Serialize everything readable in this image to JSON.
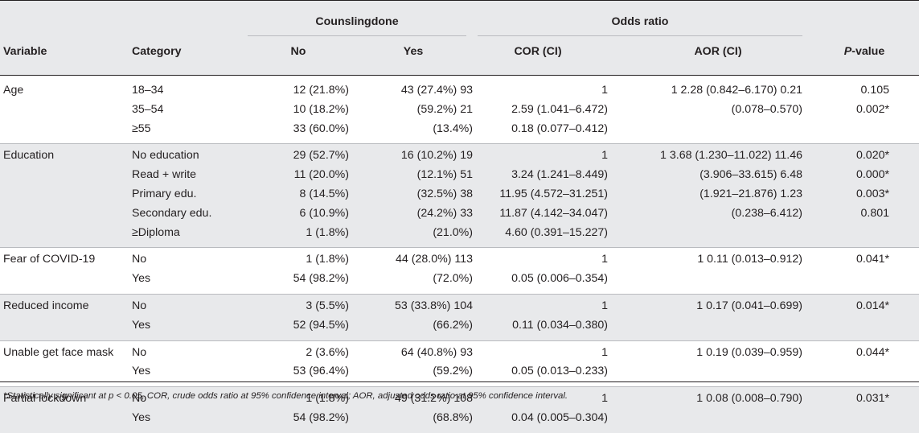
{
  "header": {
    "group_counsling": "Counslingdone",
    "group_odds": "Odds ratio",
    "col_variable": "Variable",
    "col_category": "Category",
    "col_no": "No",
    "col_yes": "Yes",
    "col_cor": "COR (CI)",
    "col_aor": "AOR (CI)",
    "col_p_italic": "P",
    "col_p_rest": "-value"
  },
  "groups": [
    {
      "variable": "Age",
      "rows": [
        {
          "category": "18–34",
          "no": "12 (21.8%)",
          "yes": "43 (27.4%) 93",
          "cor": "1",
          "aor": "1 2.28 (0.842–6.170) 0.21",
          "p": "0.105"
        },
        {
          "category": "35–54",
          "no": "10 (18.2%)",
          "yes": "(59.2%) 21",
          "cor": "2.59 (1.041–6.472)",
          "aor": "(0.078–0.570)",
          "p": "0.002*"
        },
        {
          "category": "≥55",
          "no": "33 (60.0%)",
          "yes": "(13.4%)",
          "cor": "0.18 (0.077–0.412)",
          "aor": "",
          "p": ""
        }
      ]
    },
    {
      "variable": "Education",
      "rows": [
        {
          "category": "No education",
          "no": "29 (52.7%)",
          "yes": "16 (10.2%) 19",
          "cor": "1",
          "aor": "1 3.68 (1.230–11.022) 11.46",
          "p": "0.020*"
        },
        {
          "category": "Read + write",
          "no": "11 (20.0%)",
          "yes": "(12.1%) 51",
          "cor": "3.24 (1.241–8.449)",
          "aor": "(3.906–33.615) 6.48",
          "p": "0.000*"
        },
        {
          "category": "Primary edu.",
          "no": "8 (14.5%)",
          "yes": "(32.5%) 38",
          "cor": "11.95 (4.572–31.251)",
          "aor": "(1.921–21.876) 1.23",
          "p": "0.003*"
        },
        {
          "category": "Secondary edu.",
          "no": "6 (10.9%)",
          "yes": "(24.2%) 33",
          "cor": "11.87 (4.142–34.047)",
          "aor": "(0.238–6.412)",
          "p": "0.801"
        },
        {
          "category": "≥Diploma",
          "no": "1 (1.8%)",
          "yes": "(21.0%)",
          "cor": "4.60 (0.391–15.227)",
          "aor": "",
          "p": ""
        }
      ]
    },
    {
      "variable": "Fear of COVID-19",
      "rows": [
        {
          "category": "No",
          "no": "1 (1.8%)",
          "yes": "44 (28.0%) 113",
          "cor": "1",
          "aor": "1 0.11 (0.013–0.912)",
          "p": "0.041*"
        },
        {
          "category": "Yes",
          "no": "54 (98.2%)",
          "yes": "(72.0%)",
          "cor": "0.05 (0.006–0.354)",
          "aor": "",
          "p": ""
        }
      ]
    },
    {
      "variable": "Reduced income",
      "rows": [
        {
          "category": "No",
          "no": "3 (5.5%)",
          "yes": "53 (33.8%) 104",
          "cor": "1",
          "aor": "1 0.17 (0.041–0.699)",
          "p": "0.014*"
        },
        {
          "category": "Yes",
          "no": "52 (94.5%)",
          "yes": "(66.2%)",
          "cor": "0.11 (0.034–0.380)",
          "aor": "",
          "p": ""
        }
      ]
    },
    {
      "variable": "Unable get face mask",
      "rows": [
        {
          "category": "No",
          "no": "2 (3.6%)",
          "yes": "64 (40.8%) 93",
          "cor": "1",
          "aor": "1 0.19 (0.039–0.959)",
          "p": "0.044*"
        },
        {
          "category": "Yes",
          "no": "53 (96.4%)",
          "yes": "(59.2%)",
          "cor": "0.05 (0.013–0.233)",
          "aor": "",
          "p": ""
        }
      ]
    },
    {
      "variable": "Partial lockdown",
      "rows": [
        {
          "category": "No",
          "no": "1 (1.8%)",
          "yes": "49 (31.2%) 108",
          "cor": "1",
          "aor": "1 0.08 (0.008–0.790)",
          "p": "0.031*"
        },
        {
          "category": "Yes",
          "no": "54 (98.2%)",
          "yes": "(68.8%)",
          "cor": "0.04 (0.005–0.304)",
          "aor": "",
          "p": ""
        }
      ]
    }
  ],
  "footnote": "*Statistically significant at p < 0.05, COR, crude odds ratio at 95% confidence interval; AOR, adjusted odds ratio at 95% confidence interval."
}
